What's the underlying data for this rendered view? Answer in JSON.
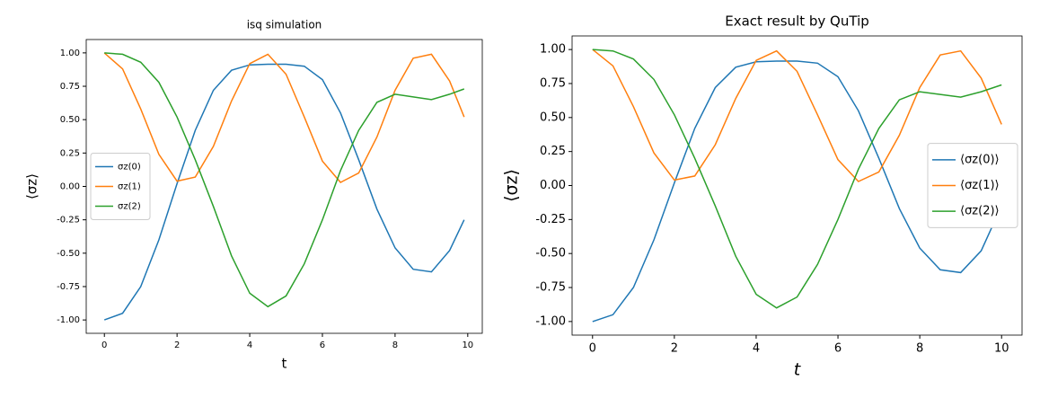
{
  "chart_data": [
    {
      "type": "line",
      "title": "isq simulation",
      "x_label": "t",
      "y_label": "⟨σz⟩",
      "x": [
        0,
        0.5,
        1,
        1.5,
        2,
        2.5,
        3,
        3.5,
        4,
        4.5,
        5,
        5.5,
        6,
        6.5,
        7,
        7.5,
        8,
        8.5,
        9,
        9.5,
        9.9
      ],
      "series": [
        {
          "name": "σz(0)",
          "color": "#1f77b4",
          "values": [
            -1,
            -0.95,
            -0.75,
            -0.4,
            0.02,
            0.42,
            0.72,
            0.87,
            0.91,
            0.915,
            0.915,
            0.9,
            0.8,
            0.55,
            0.2,
            -0.17,
            -0.46,
            -0.62,
            -0.64,
            -0.48,
            -0.25
          ]
        },
        {
          "name": "σz(1)",
          "color": "#ff7f0e",
          "values": [
            1,
            0.88,
            0.58,
            0.24,
            0.04,
            0.07,
            0.3,
            0.64,
            0.92,
            0.99,
            0.84,
            0.52,
            0.19,
            0.03,
            0.1,
            0.37,
            0.72,
            0.96,
            0.99,
            0.79,
            0.52
          ]
        },
        {
          "name": "σz(2)",
          "color": "#2ca02c",
          "values": [
            1,
            0.99,
            0.93,
            0.78,
            0.52,
            0.2,
            -0.15,
            -0.52,
            -0.8,
            -0.9,
            -0.82,
            -0.58,
            -0.25,
            0.12,
            0.42,
            0.63,
            0.69,
            0.67,
            0.65,
            0.69,
            0.73
          ]
        }
      ],
      "xlim": [
        -0.5,
        10.4
      ],
      "ylim": [
        -1.1,
        1.1
      ],
      "xticks": [
        0,
        2,
        4,
        6,
        8,
        10
      ],
      "yticks": [
        {
          "value": -1,
          "label": "-1.00"
        },
        {
          "value": -0.75,
          "label": "-0.75"
        },
        {
          "value": -0.5,
          "label": "-0.50"
        },
        {
          "value": -0.25,
          "label": "-0.25"
        },
        {
          "value": 0,
          "label": "0.00"
        },
        {
          "value": 0.25,
          "label": "0.25"
        },
        {
          "value": 0.5,
          "label": "0.50"
        },
        {
          "value": 0.75,
          "label": "0.75"
        },
        {
          "value": 1,
          "label": "1.00"
        }
      ],
      "legend": "center left"
    },
    {
      "type": "line",
      "title": "Exact result by QuTip",
      "x_label": "t",
      "y_label": "⟨σz⟩",
      "x": [
        0,
        0.5,
        1,
        1.5,
        2,
        2.5,
        3,
        3.5,
        4,
        4.5,
        5,
        5.5,
        6,
        6.5,
        7,
        7.5,
        8,
        8.5,
        9,
        9.5,
        10
      ],
      "series": [
        {
          "name": "⟨σz(0)⟩",
          "color": "#1f77b4",
          "values": [
            -1,
            -0.95,
            -0.75,
            -0.4,
            0.02,
            0.42,
            0.72,
            0.87,
            0.91,
            0.915,
            0.915,
            0.9,
            0.8,
            0.55,
            0.2,
            -0.17,
            -0.46,
            -0.62,
            -0.64,
            -0.48,
            -0.15
          ]
        },
        {
          "name": "⟨σz(1)⟩",
          "color": "#ff7f0e",
          "values": [
            1,
            0.88,
            0.58,
            0.24,
            0.04,
            0.07,
            0.3,
            0.64,
            0.92,
            0.99,
            0.84,
            0.52,
            0.19,
            0.03,
            0.1,
            0.37,
            0.72,
            0.96,
            0.99,
            0.79,
            0.45
          ]
        },
        {
          "name": "⟨σz(2)⟩",
          "color": "#2ca02c",
          "values": [
            1,
            0.99,
            0.93,
            0.78,
            0.52,
            0.2,
            -0.15,
            -0.52,
            -0.8,
            -0.9,
            -0.82,
            -0.58,
            -0.25,
            0.12,
            0.42,
            0.63,
            0.69,
            0.67,
            0.65,
            0.69,
            0.74
          ]
        }
      ],
      "xlim": [
        -0.5,
        10.5
      ],
      "ylim": [
        -1.1,
        1.1
      ],
      "xticks": [
        0,
        2,
        4,
        6,
        8,
        10
      ],
      "yticks": [
        {
          "value": -1,
          "label": "-1.00"
        },
        {
          "value": -0.75,
          "label": "-0.75"
        },
        {
          "value": -0.5,
          "label": "-0.50"
        },
        {
          "value": -0.25,
          "label": "-0.25"
        },
        {
          "value": 0,
          "label": "0.00"
        },
        {
          "value": 0.25,
          "label": "0.25"
        },
        {
          "value": 0.5,
          "label": "0.50"
        },
        {
          "value": 0.75,
          "label": "0.75"
        },
        {
          "value": 1,
          "label": "1.00"
        }
      ],
      "legend": "center right"
    }
  ]
}
